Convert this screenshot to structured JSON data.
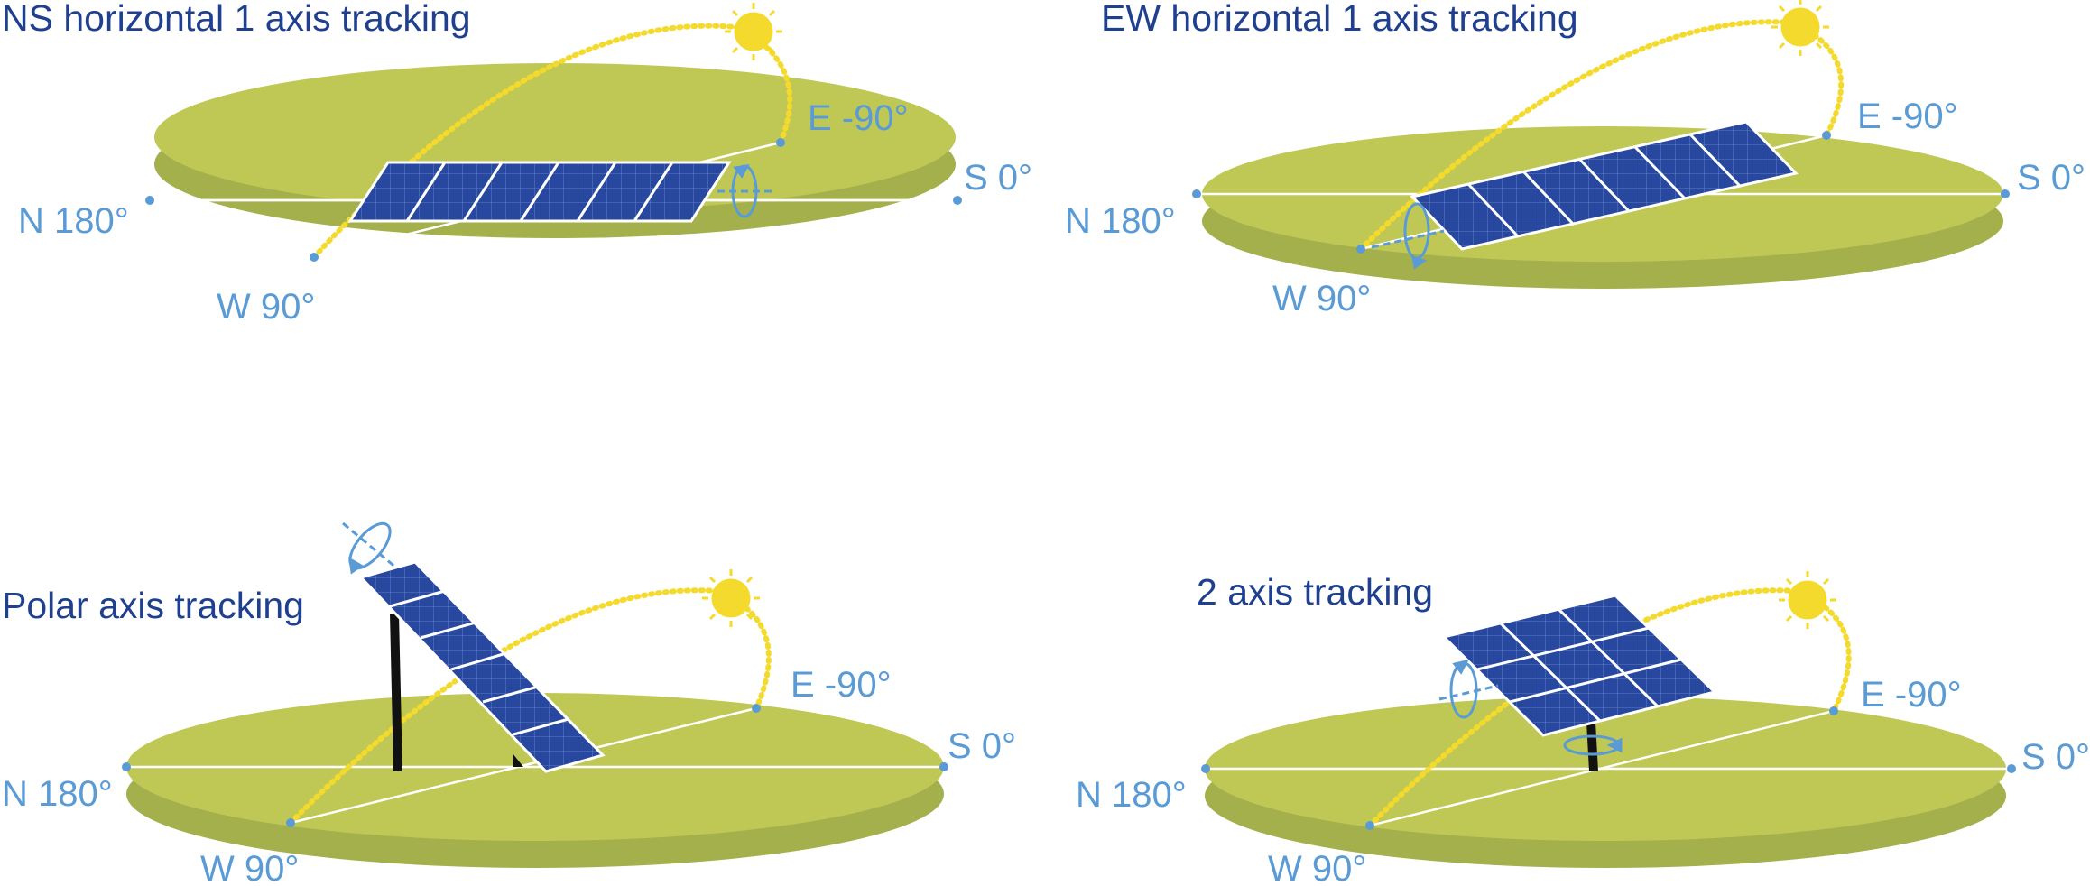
{
  "colors": {
    "disc_top": "#c0c855",
    "disc_side": "#a3b04c",
    "compass_line": "#ffffff",
    "point": "#5b9bd5",
    "label": "#5b9bd5",
    "title": "#1f3f8f",
    "sun": "#f4da2c",
    "sun_path": "#f4da2c",
    "panel_fill": "#27489e",
    "panel_grid": "#6f8cd0",
    "panel_border": "#ffffff",
    "rotation_arrow": "#5b9bd5",
    "post": "#111111"
  },
  "panels": [
    {
      "title": "NS horizontal 1 axis tracking",
      "labels": {
        "north": "N 180°",
        "south": "S 0°",
        "east": "E -90°",
        "west": "W 90°"
      }
    },
    {
      "title": "EW horizontal 1 axis tracking",
      "labels": {
        "north": "N 180°",
        "south": "S 0°",
        "east": "E -90°",
        "west": "W 90°"
      }
    },
    {
      "title": "Polar axis tracking",
      "labels": {
        "north": "N 180°",
        "south": "S 0°",
        "east": "E -90°",
        "west": "W 90°"
      }
    },
    {
      "title": "2 axis tracking",
      "labels": {
        "north": "N 180°",
        "south": "S 0°",
        "east": "E -90°",
        "west": "W 90°"
      }
    }
  ]
}
